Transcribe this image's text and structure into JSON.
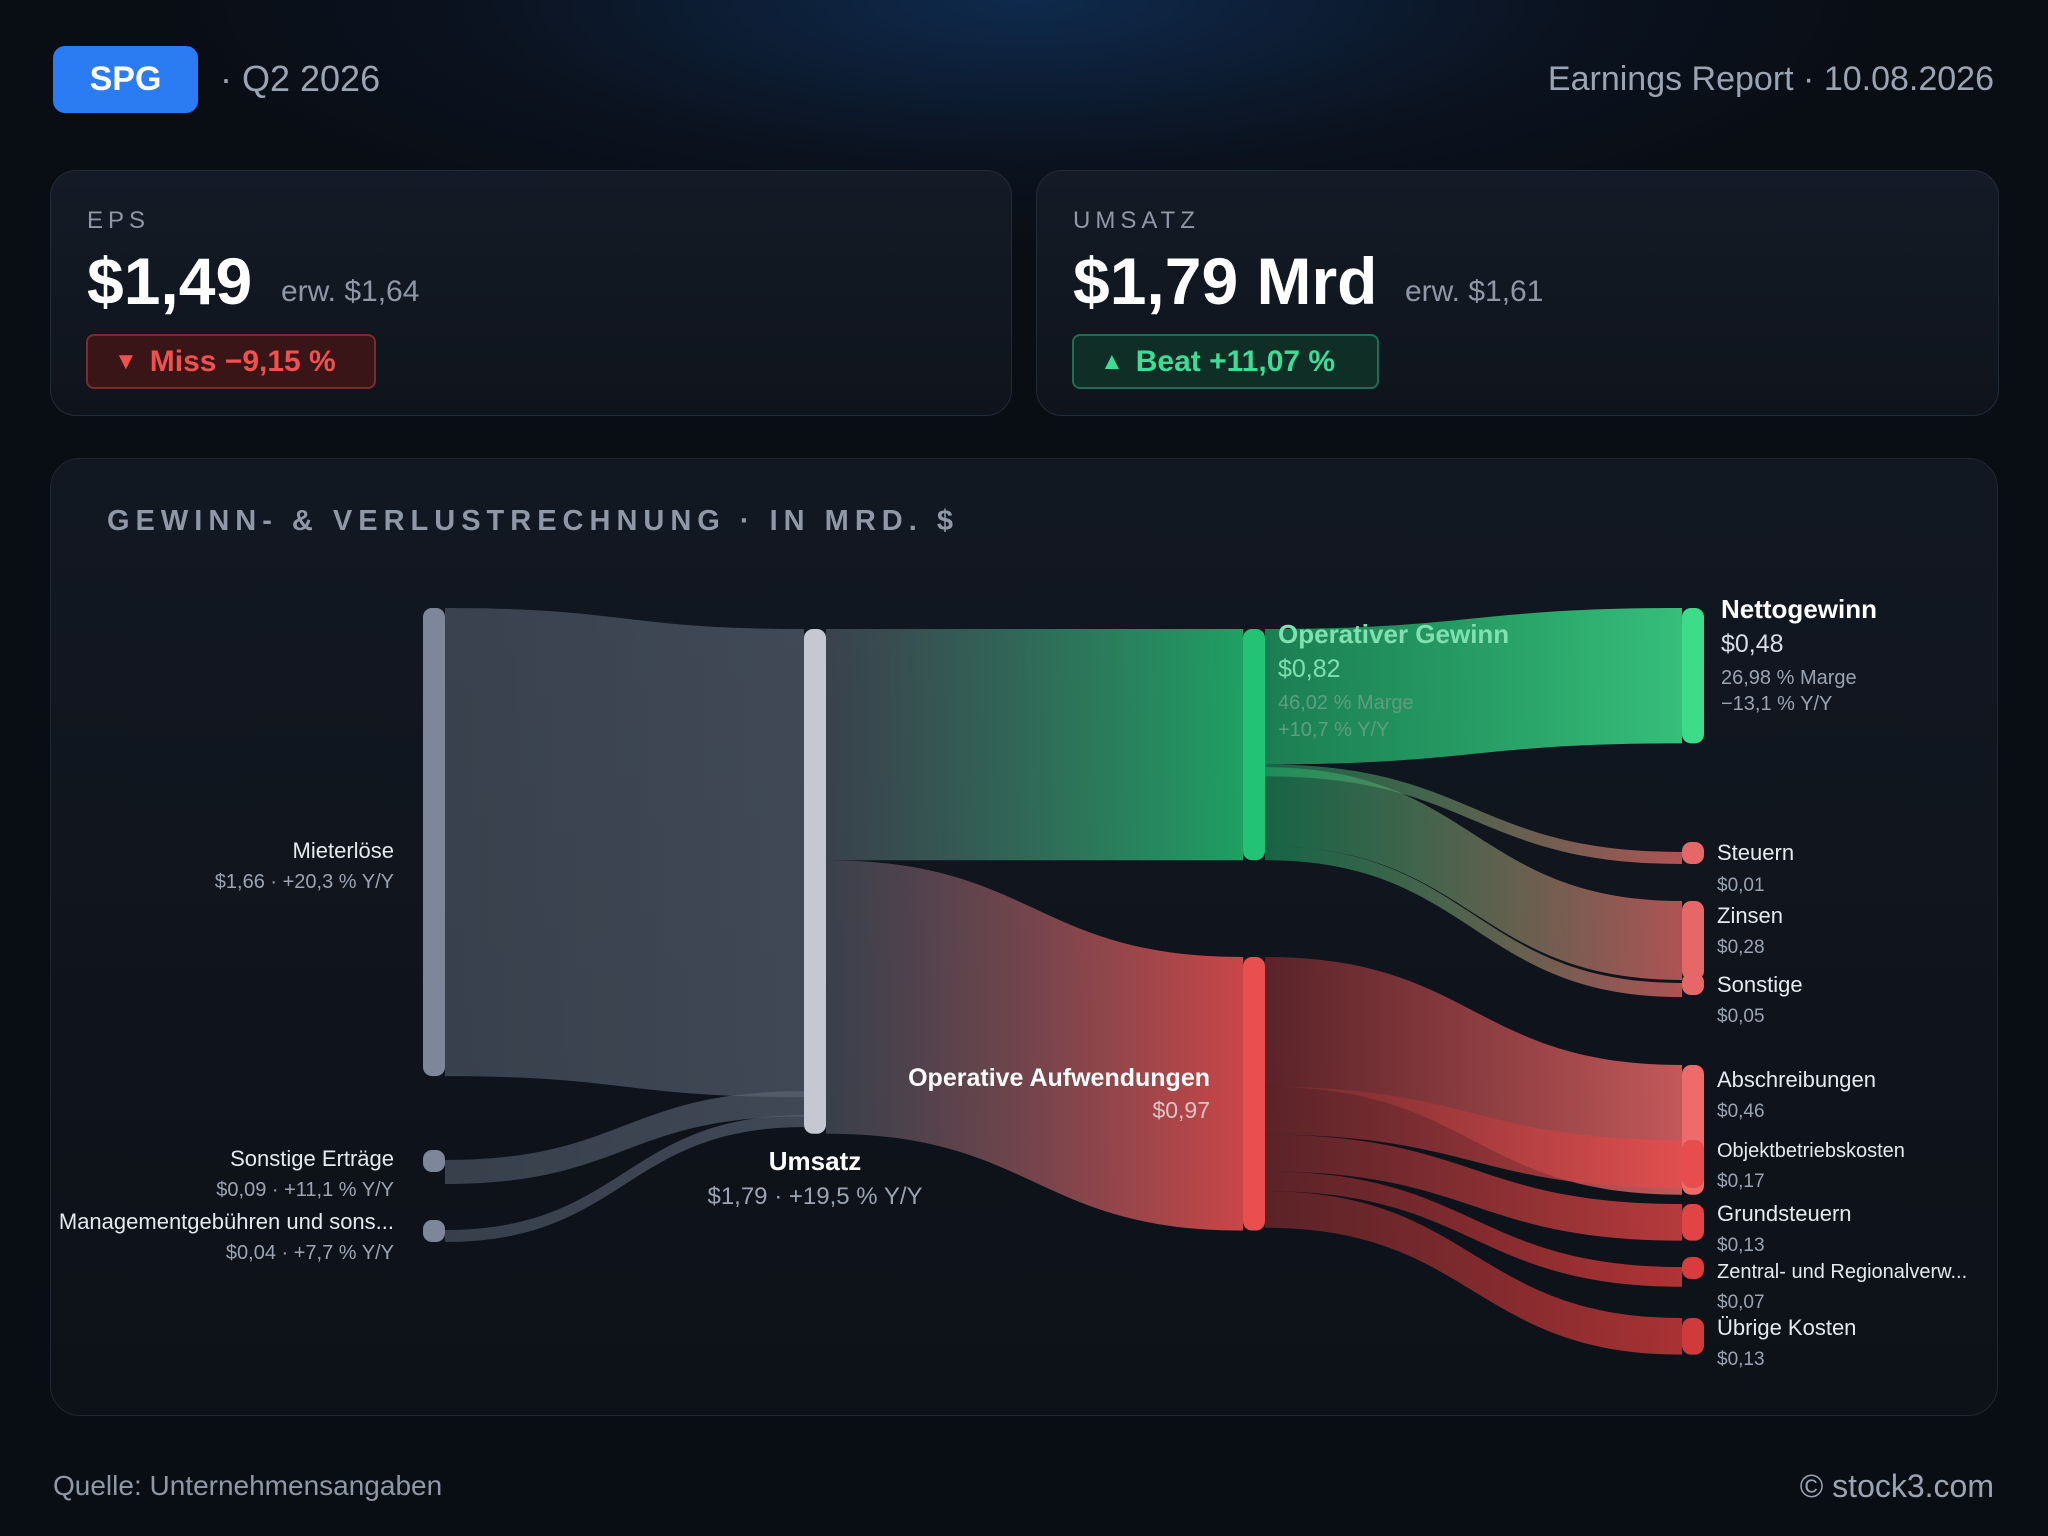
{
  "header": {
    "ticker": "SPG",
    "quarter": "· Q2 2026",
    "report": "Earnings Report · 10.08.2026"
  },
  "eps": {
    "label": "EPS",
    "value": "$1,49",
    "estimate": "erw. $1,64",
    "badge": "Miss −9,15 %",
    "badge_icon": "triangle-down-icon",
    "status_color": "#f0514f"
  },
  "revenue": {
    "label": "UMSATZ",
    "value": "$1,79 Mrd",
    "estimate": "erw. $1,61",
    "badge": "Beat +11,07 %",
    "badge_icon": "triangle-up-icon",
    "status_color": "#3ddc97"
  },
  "panel": {
    "title": "GEWINN- & VERLUSTRECHNUNG · IN MRD. $"
  },
  "chart_data": {
    "type": "sankey",
    "unit": "Mrd. $",
    "nodes": [
      {
        "id": "mieterloese",
        "name": "Mieterlöse",
        "value_label": "$1,66 · +20,3 % Y/Y",
        "value": 1.66,
        "color": "#7d8799"
      },
      {
        "id": "sonstige_ertraege",
        "name": "Sonstige Erträge",
        "value_label": "$0,09 · +11,1 % Y/Y",
        "value": 0.09,
        "color": "#7d8799"
      },
      {
        "id": "management",
        "name": "Managementgebühren und sons...",
        "value_label": "$0,04 · +7,7 % Y/Y",
        "value": 0.04,
        "color": "#7d8799"
      },
      {
        "id": "umsatz",
        "name": "Umsatz",
        "value_label": "$1,79 · +19,5 % Y/Y",
        "value": 1.79,
        "color": "#c4c8d2"
      },
      {
        "id": "op_gewinn",
        "name": "Operativer Gewinn",
        "value_label": "$0,82",
        "margin": "46,02 % Marge",
        "yoy": "+10,7 % Y/Y",
        "value": 0.82,
        "color": "#22c374"
      },
      {
        "id": "op_aufw",
        "name": "Operative Aufwendungen",
        "value_label": "$0,97",
        "value": 0.97,
        "color": "#ea4f4f"
      },
      {
        "id": "netto",
        "name": "Nettogewinn",
        "value_label": "$0,48",
        "margin": "26,98 % Marge",
        "yoy": "−13,1 % Y/Y",
        "value": 0.48,
        "color": "#3ddc8a"
      },
      {
        "id": "steuern",
        "name": "Steuern",
        "value_label": "$0,01",
        "value": 0.01,
        "color": "#e56767"
      },
      {
        "id": "zinsen",
        "name": "Zinsen",
        "value_label": "$0,28",
        "value": 0.28,
        "color": "#e56767"
      },
      {
        "id": "sonstige",
        "name": "Sonstige",
        "value_label": "$0,05",
        "value": 0.05,
        "color": "#e56767"
      },
      {
        "id": "abschreibungen",
        "name": "Abschreibungen",
        "value_label": "$0,46",
        "value": 0.46,
        "color": "#ef6a6a"
      },
      {
        "id": "objektbetrieb",
        "name": "Objektbetriebskosten",
        "value_label": "$0,17",
        "value": 0.17,
        "color": "#e84d4d"
      },
      {
        "id": "grundsteuern",
        "name": "Grundsteuern",
        "value_label": "$0,13",
        "value": 0.13,
        "color": "#e04444"
      },
      {
        "id": "zentral",
        "name": "Zentral- und Regionalverw...",
        "value_label": "$0,07",
        "value": 0.07,
        "color": "#d83c3c"
      },
      {
        "id": "uebrige",
        "name": "Übrige Kosten",
        "value_label": "$0,13",
        "value": 0.13,
        "color": "#cf3a3a"
      }
    ],
    "links": [
      {
        "source": "mieterloese",
        "target": "umsatz",
        "value": 1.66
      },
      {
        "source": "sonstige_ertraege",
        "target": "umsatz",
        "value": 0.09
      },
      {
        "source": "management",
        "target": "umsatz",
        "value": 0.04
      },
      {
        "source": "umsatz",
        "target": "op_gewinn",
        "value": 0.82
      },
      {
        "source": "umsatz",
        "target": "op_aufw",
        "value": 0.97
      },
      {
        "source": "op_gewinn",
        "target": "netto",
        "value": 0.48
      },
      {
        "source": "op_gewinn",
        "target": "steuern",
        "value": 0.01
      },
      {
        "source": "op_gewinn",
        "target": "zinsen",
        "value": 0.28
      },
      {
        "source": "op_gewinn",
        "target": "sonstige",
        "value": 0.05
      },
      {
        "source": "op_aufw",
        "target": "abschreibungen",
        "value": 0.46
      },
      {
        "source": "op_aufw",
        "target": "objektbetrieb",
        "value": 0.17
      },
      {
        "source": "op_aufw",
        "target": "grundsteuern",
        "value": 0.13
      },
      {
        "source": "op_aufw",
        "target": "zentral",
        "value": 0.07
      },
      {
        "source": "op_aufw",
        "target": "uebrige",
        "value": 0.13
      }
    ]
  },
  "footer": {
    "source": "Quelle: Unternehmensangaben",
    "copyright": "© stock3.com"
  }
}
